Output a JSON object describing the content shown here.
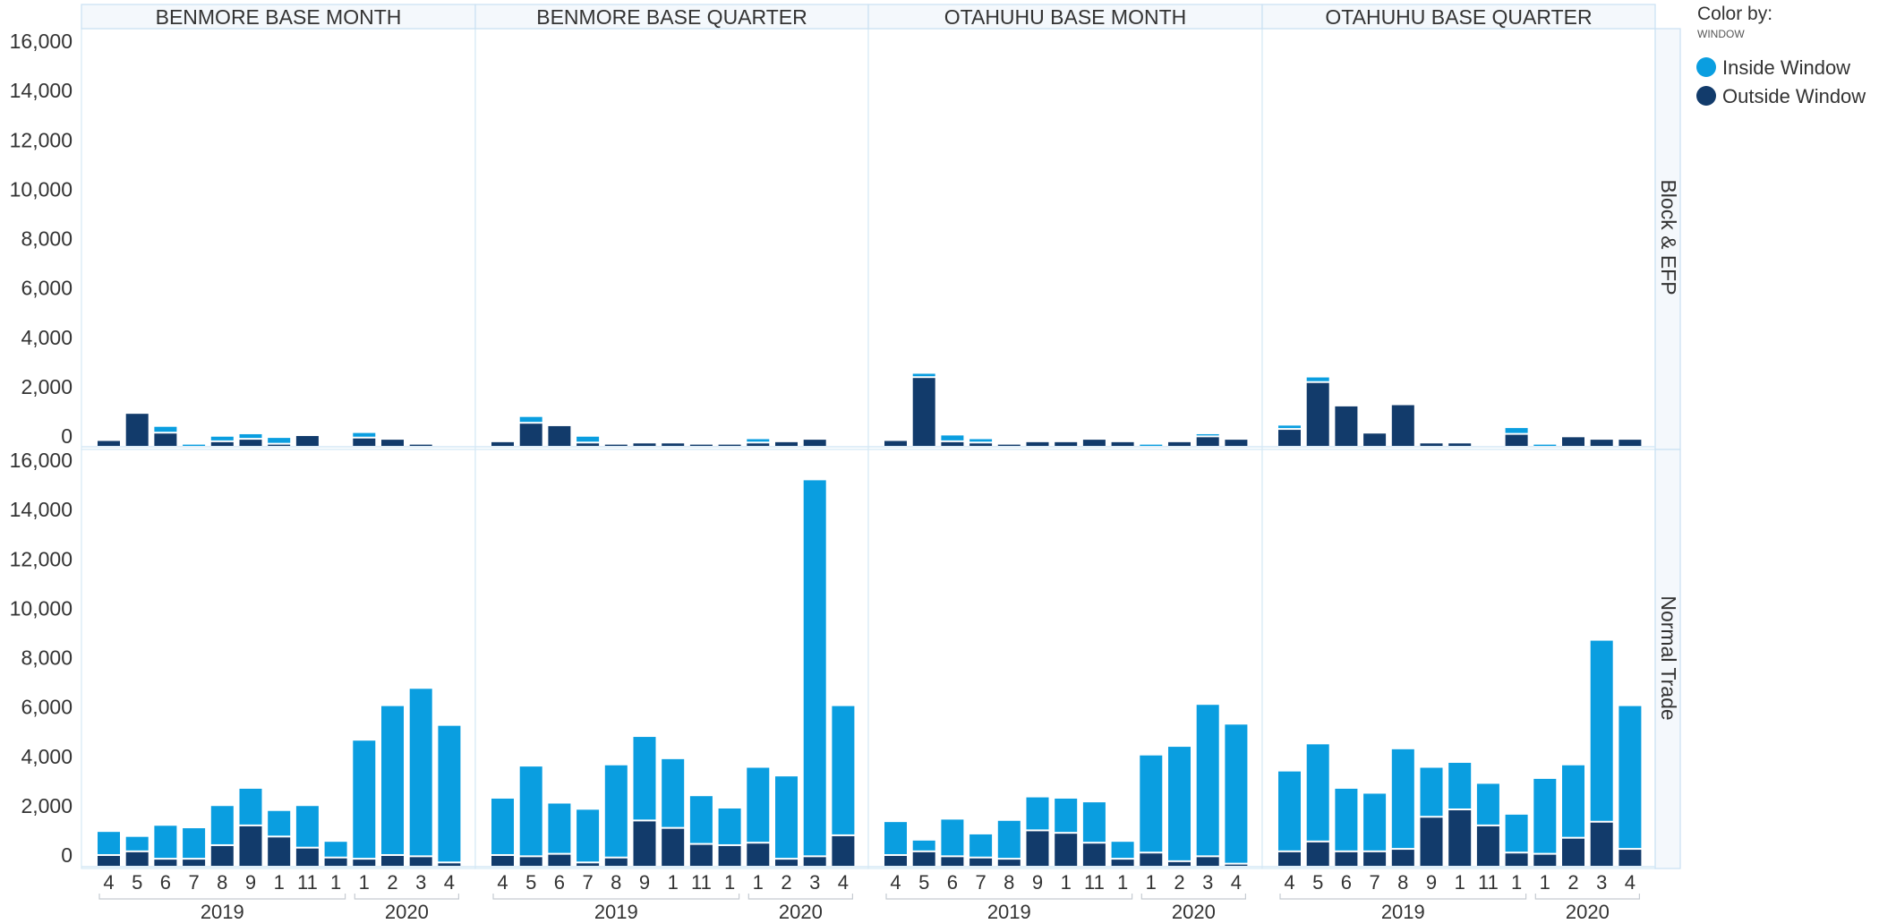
{
  "colors": {
    "inside": "#0a9ee0",
    "outside": "#123b6b"
  },
  "legend": {
    "title": "Color by:",
    "subtitle": "WINDOW",
    "items": [
      {
        "label": "Inside Window",
        "color": "#0a9ee0"
      },
      {
        "label": "Outside Window",
        "color": "#123b6b"
      }
    ]
  },
  "chart_data": {
    "type": "bar",
    "stacked": true,
    "columns": [
      "BENMORE BASE MONTH",
      "BENMORE BASE QUARTER",
      "OTAHUHU BASE MONTH",
      "OTAHUHU BASE QUARTER"
    ],
    "rows": [
      "Block & EFP",
      "Normal Trade"
    ],
    "x_labels": [
      "4",
      "5",
      "6",
      "7",
      "8",
      "9",
      "1",
      "11",
      "1",
      "1",
      "2",
      "3",
      "4"
    ],
    "year_groups": [
      {
        "label": "2019",
        "start": 0,
        "end": 8
      },
      {
        "label": "2020",
        "start": 9,
        "end": 12
      }
    ],
    "y_ticks": [
      0,
      2000,
      4000,
      6000,
      8000,
      10000,
      12000,
      14000,
      16000
    ],
    "y_tick_labels": [
      "0",
      "2,000",
      "4,000",
      "6,000",
      "8,000",
      "10,000",
      "12,000",
      "14,000",
      "16,000"
    ],
    "ylim": [
      -500,
      16000
    ],
    "legend_position": "right",
    "series": [
      {
        "name": "Outside Window",
        "color": "#123b6b"
      },
      {
        "name": "Inside Window",
        "color": "#0a9ee0"
      }
    ],
    "panels": [
      {
        "row": "Block & EFP",
        "column": "BENMORE BASE MONTH",
        "outside": [
          200,
          1300,
          500,
          0,
          150,
          250,
          50,
          400,
          0,
          300,
          250,
          50,
          0
        ],
        "inside": [
          0,
          0,
          200,
          50,
          150,
          150,
          200,
          0,
          0,
          150,
          0,
          0,
          0
        ]
      },
      {
        "row": "Block & EFP",
        "column": "BENMORE BASE QUARTER",
        "outside": [
          150,
          900,
          800,
          100,
          50,
          100,
          100,
          50,
          50,
          100,
          150,
          250,
          0
        ],
        "inside": [
          0,
          200,
          0,
          200,
          0,
          0,
          0,
          0,
          0,
          100,
          0,
          0,
          0
        ]
      },
      {
        "row": "Block & EFP",
        "column": "OTAHUHU BASE MONTH",
        "outside": [
          200,
          2750,
          150,
          100,
          50,
          150,
          150,
          250,
          150,
          0,
          150,
          350,
          250
        ],
        "inside": [
          0,
          100,
          200,
          100,
          0,
          0,
          0,
          0,
          0,
          50,
          0,
          50,
          0
        ],
        "x_labels": [
          "4",
          "5",
          "6",
          "7",
          "8",
          "9",
          "1",
          "11",
          "1",
          "1",
          "2",
          "3",
          "4"
        ]
      },
      {
        "row": "Block & EFP",
        "column": "OTAHUHU BASE QUARTER",
        "outside": [
          650,
          2550,
          1600,
          500,
          1650,
          100,
          100,
          0,
          450,
          0,
          350,
          250,
          250
        ],
        "inside": [
          100,
          150,
          0,
          0,
          0,
          0,
          0,
          0,
          200,
          50,
          0,
          0,
          0
        ]
      },
      {
        "row": "Normal Trade",
        "column": "BENMORE BASE MONTH",
        "outside": [
          400,
          550,
          250,
          250,
          800,
          1600,
          1150,
          700,
          300,
          250,
          400,
          350,
          100
        ],
        "inside": [
          900,
          550,
          1300,
          1200,
          1550,
          1450,
          1000,
          1650,
          600,
          4750,
          6000,
          6750,
          5500
        ]
      },
      {
        "row": "Normal Trade",
        "column": "BENMORE BASE QUARTER",
        "outside": [
          400,
          350,
          450,
          100,
          300,
          1800,
          1500,
          850,
          800,
          900,
          250,
          350,
          1200
        ],
        "inside": [
          2250,
          3600,
          2000,
          2100,
          3700,
          3350,
          2750,
          1900,
          1450,
          3000,
          3300,
          15200,
          5200
        ]
      },
      {
        "row": "Normal Trade",
        "column": "OTAHUHU BASE MONTH",
        "outside": [
          400,
          550,
          350,
          300,
          250,
          1400,
          1300,
          900,
          250,
          500,
          150,
          350,
          50
        ],
        "inside": [
          1300,
          400,
          1450,
          900,
          1500,
          1300,
          1350,
          1600,
          650,
          3900,
          4600,
          6100,
          5600
        ]
      },
      {
        "row": "Normal Trade",
        "column": "OTAHUHU BASE QUARTER",
        "outside": [
          550,
          950,
          550,
          550,
          650,
          1950,
          2250,
          1600,
          500,
          450,
          1100,
          1750,
          650
        ],
        "inside": [
          3200,
          3900,
          2500,
          2300,
          4000,
          1950,
          1850,
          1650,
          1500,
          3000,
          2900,
          7300,
          5750
        ]
      }
    ]
  }
}
